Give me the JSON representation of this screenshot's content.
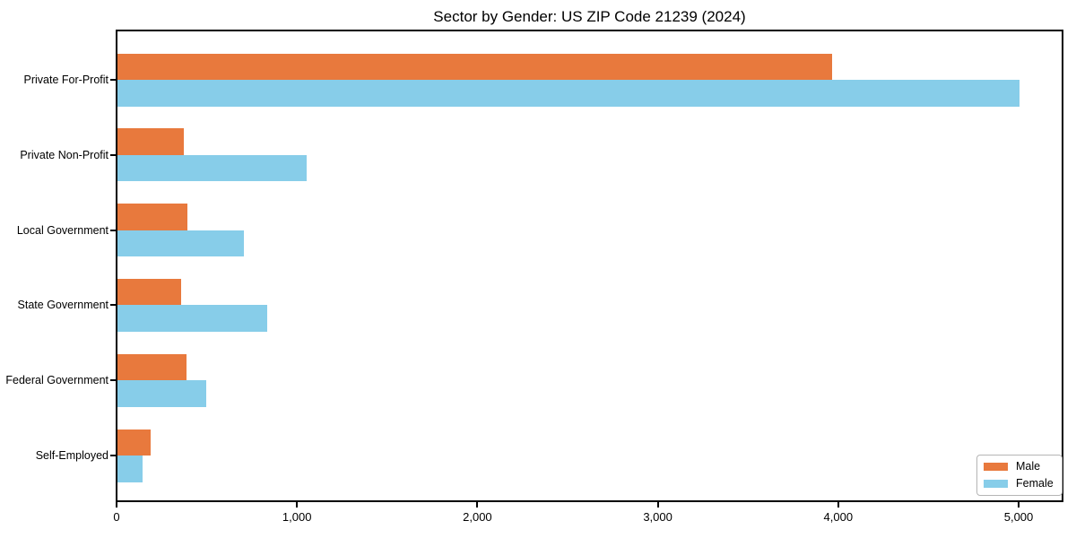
{
  "chart_data": {
    "type": "bar",
    "orientation": "horizontal",
    "title": "Sector by Gender: US ZIP Code 21239 (2024)",
    "categories": [
      "Private For-Profit",
      "Private Non-Profit",
      "Local Government",
      "State Government",
      "Federal Government",
      "Self-Employed"
    ],
    "series": [
      {
        "name": "Male",
        "color": "#e8793d",
        "values": [
          3960,
          370,
          390,
          355,
          385,
          185
        ]
      },
      {
        "name": "Female",
        "color": "#87cde9",
        "values": [
          5000,
          1050,
          700,
          830,
          490,
          140
        ]
      }
    ],
    "xlabel": "",
    "ylabel": "",
    "xlim": [
      0,
      5250
    ],
    "x_ticks": [
      0,
      1000,
      2000,
      3000,
      4000,
      5000
    ],
    "x_tick_labels": [
      "0",
      "1,000",
      "2,000",
      "3,000",
      "4,000",
      "5,000"
    ],
    "legend": {
      "position": "lower-right",
      "entries": [
        "Male",
        "Female"
      ]
    },
    "grid": false,
    "frame_color": "#000000",
    "background_color": "#ffffff"
  }
}
